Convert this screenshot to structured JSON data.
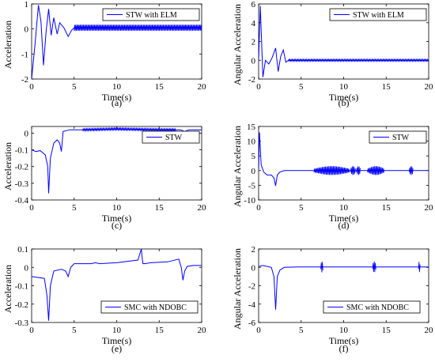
{
  "colors": {
    "series": "#0000ff",
    "axis": "#000000"
  },
  "chart_data": [
    {
      "type": "line",
      "caption": "(a)",
      "xlabel": "Time(s)",
      "ylabel": "Acceleration",
      "xlim": [
        0,
        20
      ],
      "ylim": [
        -2,
        1
      ],
      "xticks": [
        0,
        5,
        10,
        15,
        20
      ],
      "yticks": [
        -2,
        -1,
        0,
        1
      ],
      "legend": "top-right",
      "osc_amp": 0.12,
      "osc_range": [
        5,
        20
      ],
      "series": [
        {
          "name": "STW with ELM",
          "x": [
            0,
            0.4,
            0.8,
            1.1,
            1.4,
            1.7,
            2.0,
            2.3,
            2.6,
            3.0,
            3.3,
            3.8,
            4.3,
            4.7,
            5.0,
            20
          ],
          "y": [
            -2,
            -0.6,
            0.95,
            0.3,
            -1.45,
            -0.1,
            0.8,
            -0.25,
            0.45,
            -0.2,
            0.25,
            0.05,
            -0.3,
            -0.05,
            0.05,
            0.05
          ]
        }
      ]
    },
    {
      "type": "line",
      "caption": "(b)",
      "xlabel": "Time(s)",
      "ylabel": "Angular Acceleration",
      "xlim": [
        0,
        20
      ],
      "ylim": [
        -2,
        6
      ],
      "xticks": [
        0,
        5,
        10,
        15,
        20
      ],
      "yticks": [
        -2,
        0,
        2,
        4,
        6
      ],
      "legend": "top-right",
      "osc_amp": 0.1,
      "osc_range": [
        3.5,
        20
      ],
      "series": [
        {
          "name": "STW with ELM",
          "x": [
            0,
            0.2,
            0.5,
            0.8,
            1.2,
            1.6,
            2.0,
            2.3,
            2.6,
            2.9,
            3.2,
            3.5,
            20
          ],
          "y": [
            0,
            5.8,
            -1.8,
            0,
            -0.4,
            0.3,
            1.3,
            -1.2,
            0.4,
            1.1,
            -0.2,
            0,
            0
          ]
        }
      ]
    },
    {
      "type": "line",
      "caption": "(c)",
      "xlabel": "Time(s)",
      "ylabel": "Acceleration",
      "xlim": [
        0,
        20
      ],
      "ylim": [
        -0.4,
        0.04
      ],
      "xticks": [
        0,
        5,
        10,
        15,
        20
      ],
      "yticks": [
        -0.4,
        -0.3,
        -0.2,
        -0.1,
        0
      ],
      "ytick_labels": [
        "-0.4",
        "-0.3",
        "-0.2",
        "-0.1",
        "0"
      ],
      "legend": "top-right",
      "osc_amp": 0.006,
      "osc_range": [
        6,
        17
      ],
      "series": [
        {
          "name": "STW",
          "x": [
            0,
            0.5,
            1.0,
            1.6,
            1.9,
            2.0,
            2.2,
            2.6,
            3.0,
            3.3,
            3.5,
            3.7,
            4.5,
            6,
            10,
            15,
            17.5,
            18.0,
            18.5,
            20
          ],
          "y": [
            -0.1,
            -0.11,
            -0.105,
            -0.13,
            -0.2,
            -0.36,
            -0.15,
            -0.06,
            -0.04,
            -0.06,
            -0.11,
            0.01,
            0.02,
            0.02,
            0.025,
            0.02,
            0.02,
            0.01,
            0.02,
            0.02
          ]
        }
      ]
    },
    {
      "type": "line",
      "caption": "(d)",
      "xlabel": "Time(s)",
      "ylabel": "Angular Acceleration",
      "xlim": [
        0,
        20
      ],
      "ylim": [
        -10,
        15
      ],
      "xticks": [
        0,
        5,
        10,
        15,
        20
      ],
      "yticks": [
        -10,
        -5,
        0,
        5,
        10,
        15
      ],
      "legend": "top-right",
      "osc_amp": 1.5,
      "bursts": [
        [
          6.5,
          10.7
        ],
        [
          10.8,
          11.4
        ],
        [
          11.5,
          12.0
        ],
        [
          12.8,
          14.8
        ],
        [
          17.7,
          18.2
        ]
      ],
      "series": [
        {
          "name": "STW",
          "x": [
            0,
            0.1,
            0.3,
            0.6,
            1.0,
            1.5,
            1.8,
            2.0,
            2.2,
            2.5,
            3.0,
            4.0,
            20
          ],
          "y": [
            0,
            13,
            2,
            -0.5,
            -1.5,
            -1.5,
            -2.5,
            -5.2,
            -1.5,
            -0.5,
            0,
            0,
            0
          ]
        }
      ]
    },
    {
      "type": "line",
      "caption": "(e)",
      "xlabel": "Time(s)",
      "ylabel": "Acceleration",
      "xlim": [
        0,
        20
      ],
      "ylim": [
        -0.3,
        0.1
      ],
      "xticks": [
        0,
        5,
        10,
        15,
        20
      ],
      "yticks": [
        -0.3,
        -0.2,
        -0.1,
        0,
        0.1
      ],
      "ytick_labels": [
        "-0.3",
        "-0.2",
        "-0.1",
        "0",
        "0.1"
      ],
      "legend": "bottom-left",
      "series": [
        {
          "name": "SMC with NDOBC",
          "x": [
            0,
            1.5,
            1.8,
            2.0,
            2.2,
            2.6,
            3.5,
            4.0,
            4.3,
            4.6,
            5.0,
            6.0,
            7.0,
            7.5,
            8.0,
            10.0,
            12.5,
            12.9,
            13.0,
            13.1,
            13.3,
            14.0,
            16.0,
            17.3,
            17.6,
            17.8,
            18.0,
            18.3,
            19.0,
            20
          ],
          "y": [
            -0.05,
            -0.06,
            -0.15,
            -0.29,
            -0.1,
            -0.02,
            -0.01,
            -0.02,
            -0.05,
            0.0,
            0.02,
            0.02,
            0.02,
            0.025,
            0.02,
            0.025,
            0.04,
            0.1,
            0.05,
            0.02,
            0.02,
            0.025,
            0.03,
            0.045,
            0.0,
            -0.07,
            -0.02,
            0.005,
            0.01,
            0.01
          ]
        }
      ]
    },
    {
      "type": "line",
      "caption": "(f)",
      "xlabel": "Time(s)",
      "ylabel": "Angular Acceleration",
      "xlim": [
        0,
        20
      ],
      "ylim": [
        -6,
        2
      ],
      "xticks": [
        0,
        5,
        10,
        15,
        20
      ],
      "yticks": [
        -6,
        -4,
        -2,
        0,
        2
      ],
      "legend": "bottom-right",
      "osc_amp": 0.6,
      "bursts": [
        [
          7.3,
          7.6
        ],
        [
          13.4,
          13.8
        ],
        [
          18.8,
          19.0
        ]
      ],
      "series": [
        {
          "name": "SMC with NDOBC",
          "x": [
            0,
            0.5,
            1.5,
            1.8,
            2.0,
            2.2,
            2.5,
            3.0,
            4.5,
            20
          ],
          "y": [
            0.1,
            0.2,
            0.0,
            -1.0,
            -4.6,
            -1.0,
            -0.3,
            0.0,
            0.05,
            0.05
          ]
        }
      ]
    }
  ]
}
